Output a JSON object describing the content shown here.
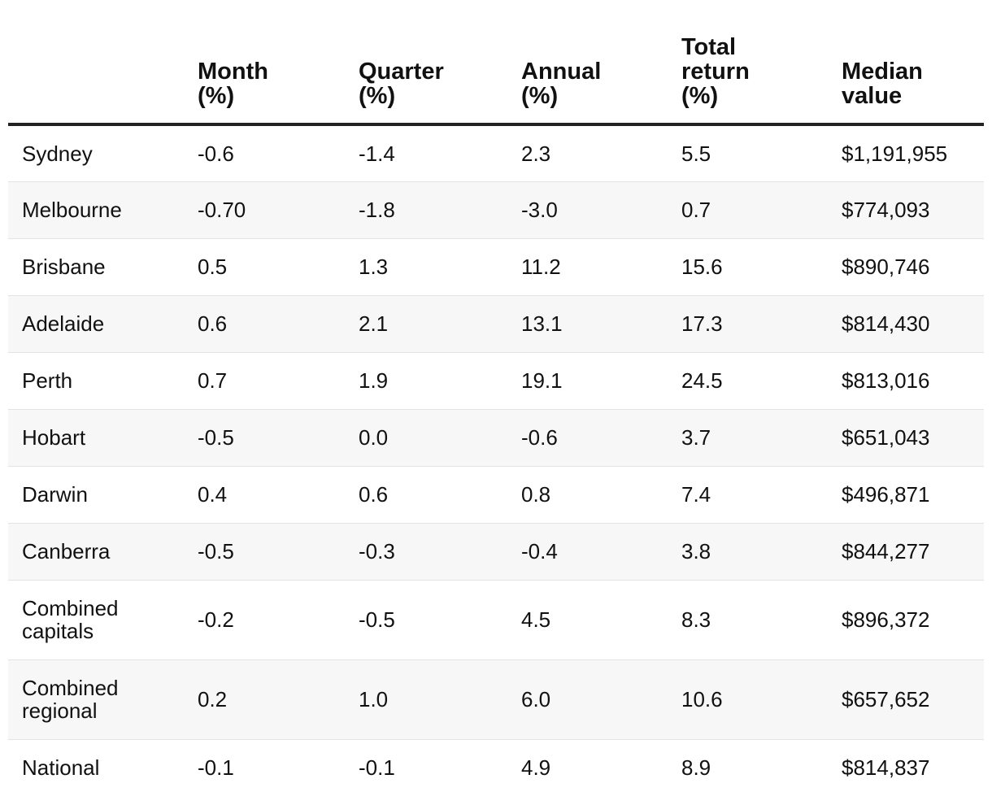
{
  "table": {
    "headers": [
      "",
      "Month\n(%)",
      "Quarter\n(%)",
      "Annual\n(%)",
      "Total\nreturn\n(%)",
      "Median\nvalue"
    ],
    "rows": [
      {
        "region": "Sydney",
        "month": "-0.6",
        "quarter": "-1.4",
        "annual": "2.3",
        "total_return": "5.5",
        "median_value": "$1,191,955"
      },
      {
        "region": "Melbourne",
        "month": "-0.70",
        "quarter": "-1.8",
        "annual": "-3.0",
        "total_return": "0.7",
        "median_value": "$774,093"
      },
      {
        "region": "Brisbane",
        "month": "0.5",
        "quarter": "1.3",
        "annual": "11.2",
        "total_return": "15.6",
        "median_value": "$890,746"
      },
      {
        "region": "Adelaide",
        "month": "0.6",
        "quarter": "2.1",
        "annual": "13.1",
        "total_return": "17.3",
        "median_value": "$814,430"
      },
      {
        "region": "Perth",
        "month": "0.7",
        "quarter": "1.9",
        "annual": "19.1",
        "total_return": "24.5",
        "median_value": "$813,016"
      },
      {
        "region": "Hobart",
        "month": "-0.5",
        "quarter": "0.0",
        "annual": "-0.6",
        "total_return": "3.7",
        "median_value": "$651,043"
      },
      {
        "region": "Darwin",
        "month": "0.4",
        "quarter": "0.6",
        "annual": "0.8",
        "total_return": "7.4",
        "median_value": "$496,871"
      },
      {
        "region": "Canberra",
        "month": "-0.5",
        "quarter": "-0.3",
        "annual": "-0.4",
        "total_return": "3.8",
        "median_value": "$844,277"
      },
      {
        "region": "Combined\ncapitals",
        "month": "-0.2",
        "quarter": "-0.5",
        "annual": "4.5",
        "total_return": "8.3",
        "median_value": "$896,372"
      },
      {
        "region": "Combined\nregional",
        "month": "0.2",
        "quarter": "1.0",
        "annual": "6.0",
        "total_return": "10.6",
        "median_value": "$657,652"
      },
      {
        "region": "National",
        "month": "-0.1",
        "quarter": "-0.1",
        "annual": "4.9",
        "total_return": "8.9",
        "median_value": "$814,837"
      }
    ]
  }
}
